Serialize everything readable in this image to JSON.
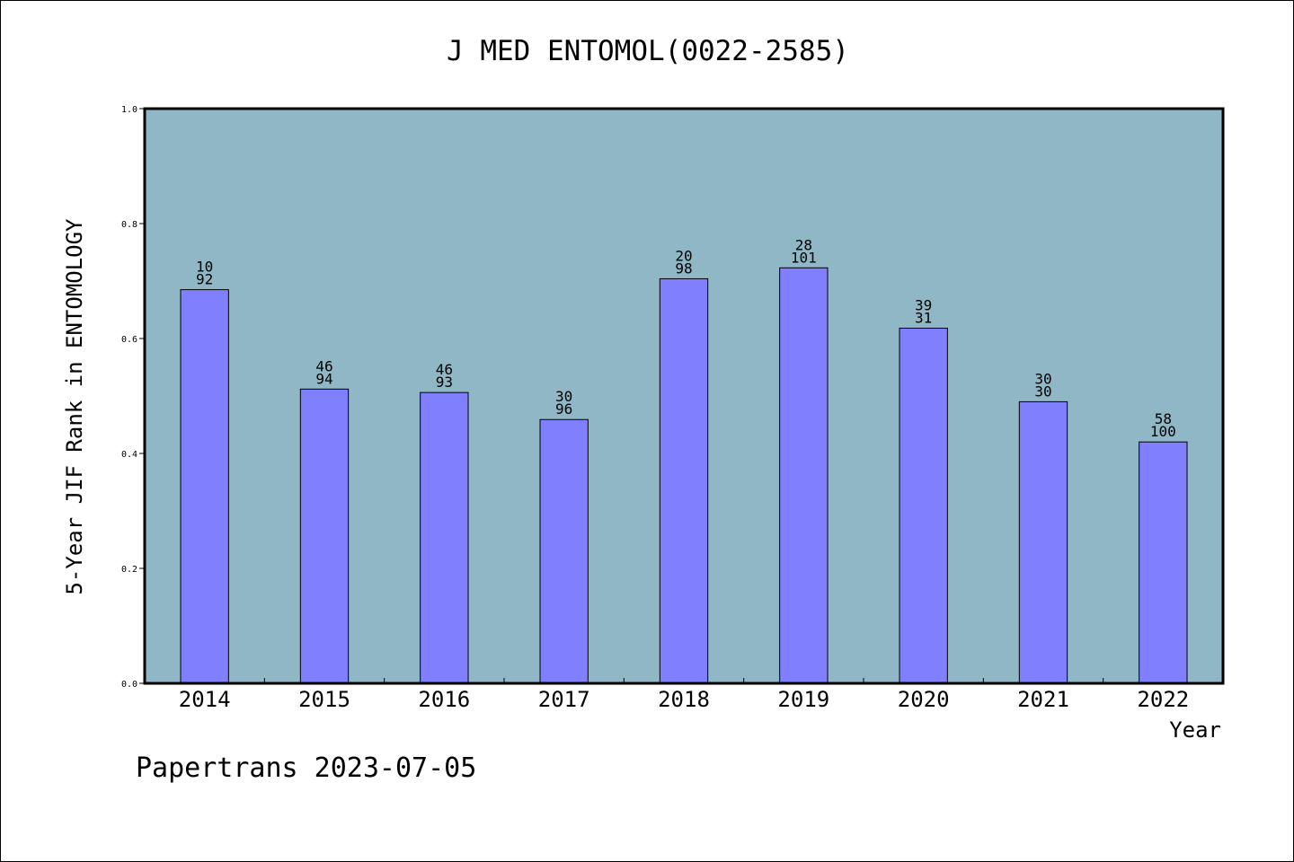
{
  "chart_data": {
    "type": "bar",
    "title": "J MED ENTOMOL(0022-2585)",
    "xlabel": "Year",
    "ylabel": "5-Year JIF Rank in ENTOMOLOGY",
    "ylim": [
      0.0,
      1.0
    ],
    "yticks": [
      0.0,
      0.2,
      0.4,
      0.6,
      0.8,
      1.0
    ],
    "ytick_labels": [
      "0.0",
      "0.2",
      "0.4",
      "0.6",
      "0.8",
      "1.0"
    ],
    "categories": [
      "2014",
      "2015",
      "2016",
      "2017",
      "2018",
      "2019",
      "2020",
      "2021",
      "2022"
    ],
    "values": [
      0.685,
      0.512,
      0.506,
      0.459,
      0.704,
      0.723,
      0.618,
      0.49,
      0.42
    ],
    "data_labels": [
      [
        "10",
        "92"
      ],
      [
        "46",
        "94"
      ],
      [
        "46",
        "93"
      ],
      [
        "30",
        "96"
      ],
      [
        "20",
        "98"
      ],
      [
        "28",
        "101"
      ],
      [
        "39",
        "31"
      ],
      [
        "30",
        "30"
      ],
      [
        "58",
        "100"
      ]
    ],
    "grid": false,
    "legend": "none"
  },
  "footer": {
    "text": "Papertrans 2023-07-05"
  },
  "colors": {
    "plot_background": "#8fb7c5",
    "bar_fill": "#8080ff",
    "bar_stroke": "#000000",
    "axis": "#000000",
    "text": "#000000"
  }
}
